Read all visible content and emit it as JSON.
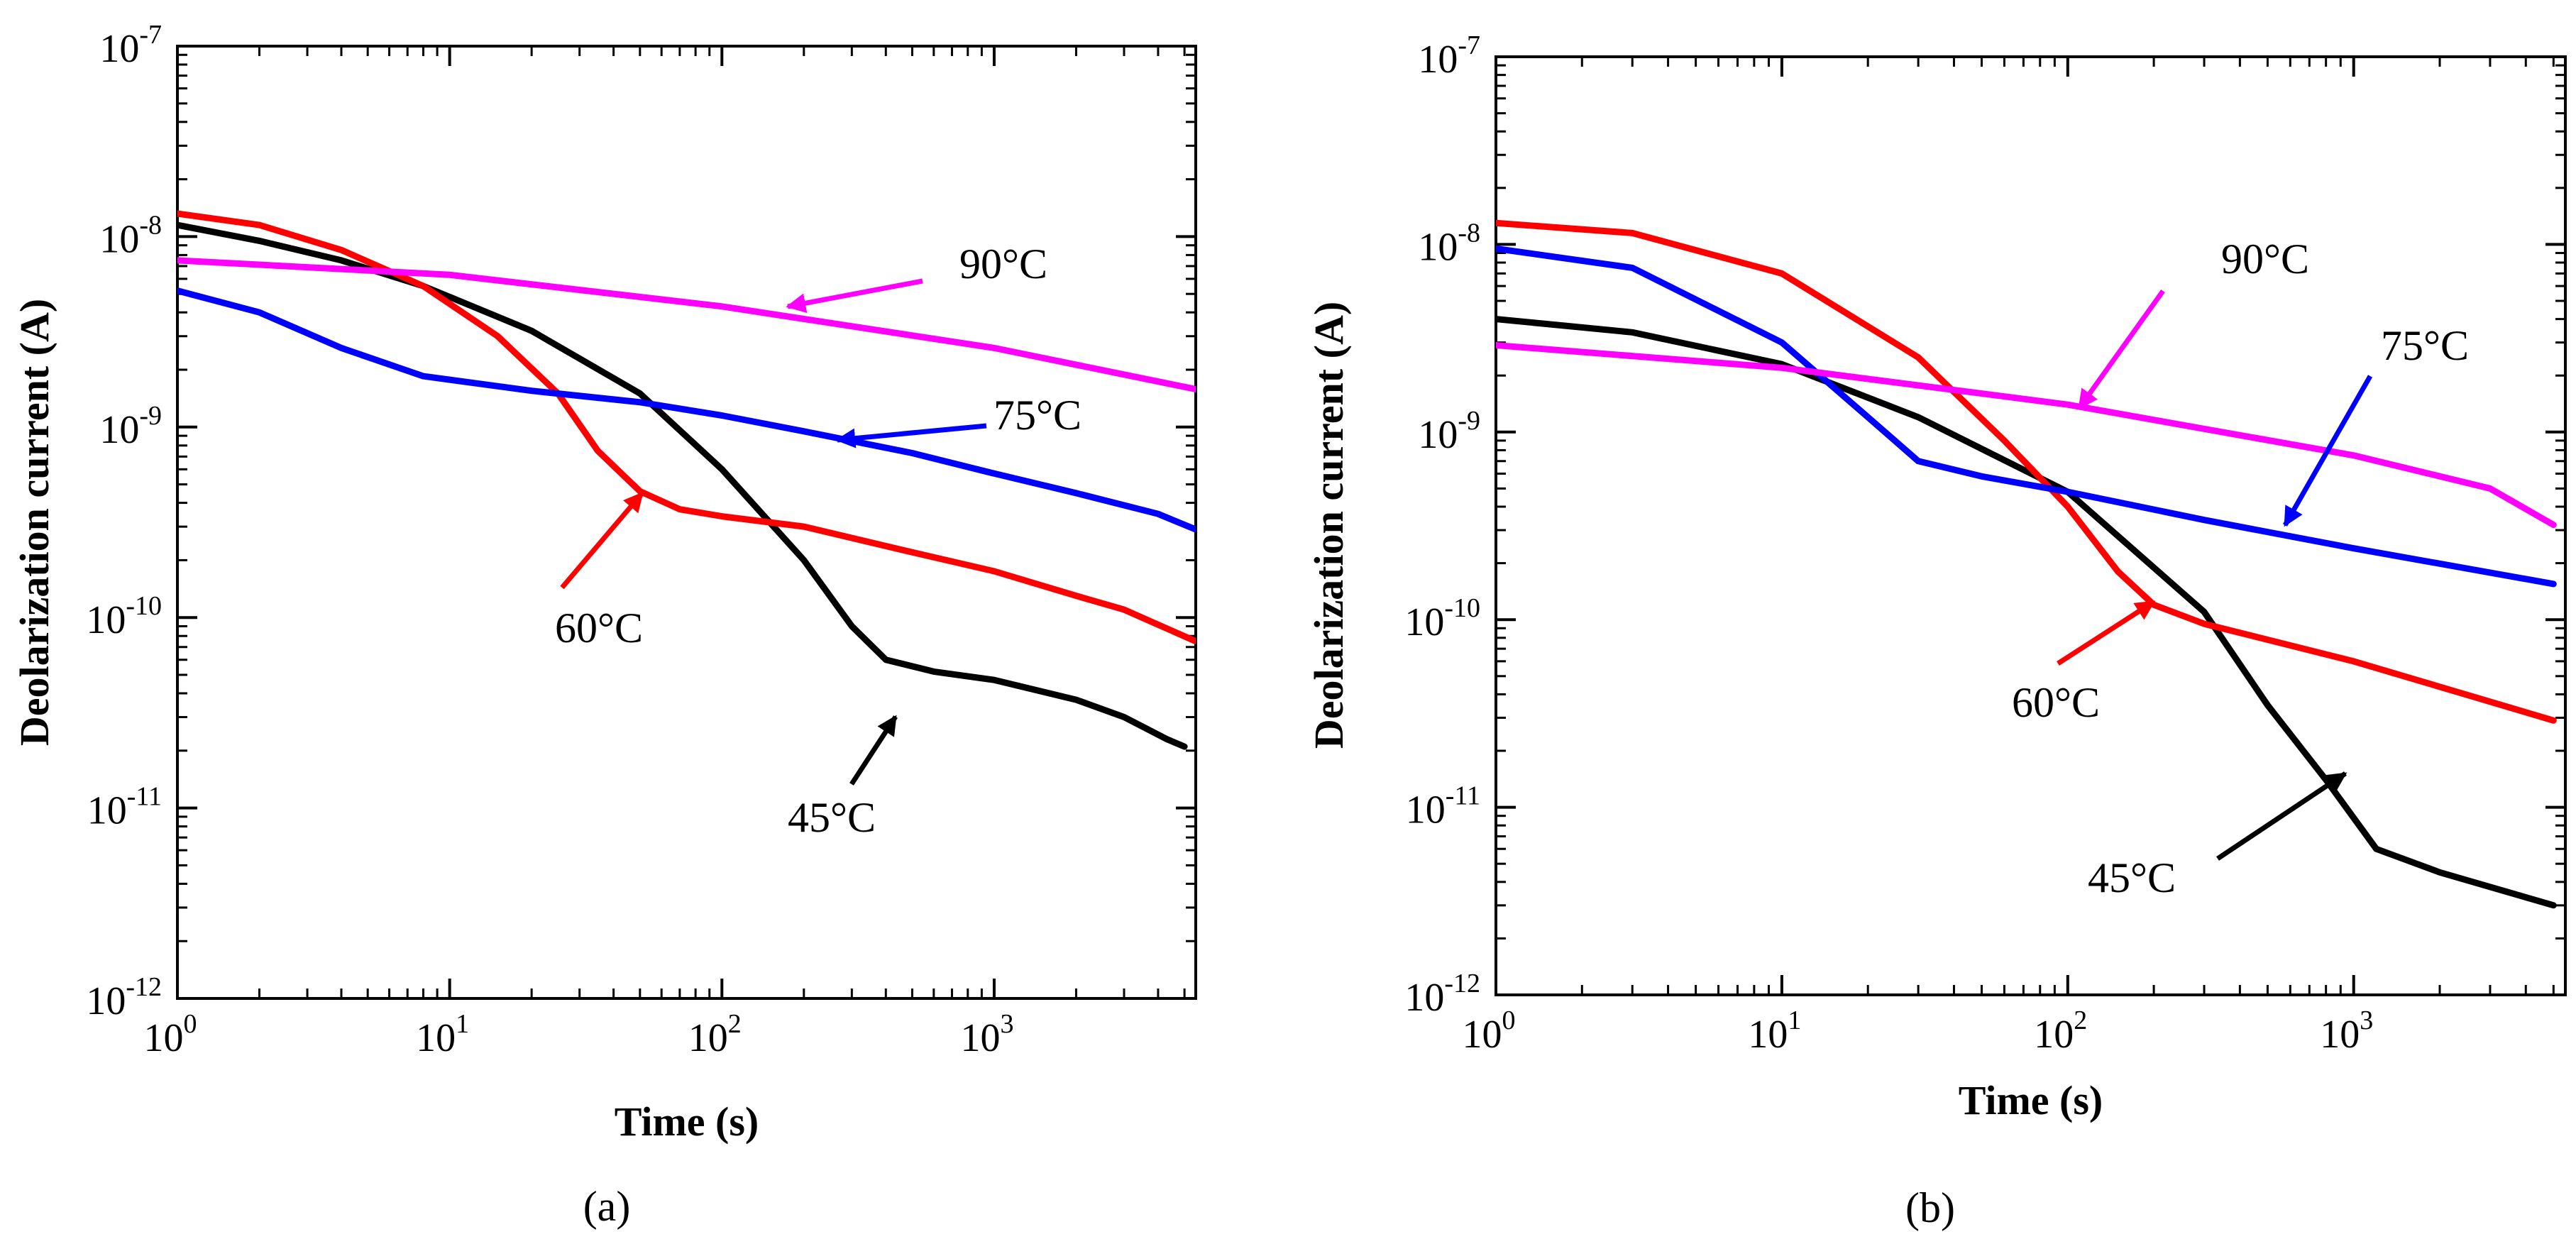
{
  "chart_data": [
    {
      "type": "line",
      "panel_label": "(a)",
      "xlabel": "Time (s)",
      "ylabel": "Deolarization current (A)",
      "x_scale": "log",
      "y_scale": "log",
      "xlim": [
        1,
        5500
      ],
      "ylim": [
        1e-12,
        1e-07
      ],
      "grid": false,
      "legend": "none (curves annotated with arrows)",
      "x_ticks": [
        {
          "label": "10",
          "exp": "0",
          "value": 1
        },
        {
          "label": "10",
          "exp": "1",
          "value": 10
        },
        {
          "label": "10",
          "exp": "2",
          "value": 100
        },
        {
          "label": "10",
          "exp": "3",
          "value": 1000
        }
      ],
      "y_ticks": [
        {
          "label": "10",
          "exp": "-12",
          "value": 1e-12
        },
        {
          "label": "10",
          "exp": "-11",
          "value": 1e-11
        },
        {
          "label": "10",
          "exp": "-10",
          "value": 1e-10
        },
        {
          "label": "10",
          "exp": "-9",
          "value": 1e-09
        },
        {
          "label": "10",
          "exp": "-8",
          "value": 1e-08
        },
        {
          "label": "10",
          "exp": "-7",
          "value": 1e-07
        }
      ],
      "series": [
        {
          "name": "45°C",
          "color": "#000000",
          "x": [
            1,
            2,
            4,
            8,
            20,
            50,
            100,
            200,
            300,
            400,
            600,
            1000,
            2000,
            3000,
            4300,
            5000
          ],
          "y": [
            1.15e-08,
            9.5e-09,
            7.5e-09,
            5.5e-09,
            3.2e-09,
            1.5e-09,
            6e-10,
            2e-10,
            9e-11,
            6e-11,
            5.2e-11,
            4.7e-11,
            3.7e-11,
            3e-11,
            2.3e-11,
            2.1e-11
          ]
        },
        {
          "name": "60°C",
          "color": "#ff0000",
          "x": [
            1,
            2,
            4,
            8,
            15,
            25,
            35,
            50,
            70,
            100,
            200,
            500,
            1000,
            2000,
            3000,
            5500
          ],
          "y": [
            1.32e-08,
            1.15e-08,
            8.5e-09,
            5.5e-09,
            3e-09,
            1.5e-09,
            7.5e-10,
            4.6e-10,
            3.7e-10,
            3.4e-10,
            3e-10,
            2.2e-10,
            1.75e-10,
            1.3e-10,
            1.1e-10,
            7.5e-11
          ]
        },
        {
          "name": "75°C",
          "color": "#0000ff",
          "x": [
            1,
            2,
            4,
            8,
            20,
            50,
            100,
            200,
            500,
            1000,
            2000,
            4000,
            5500
          ],
          "y": [
            5.2e-09,
            4e-09,
            2.6e-09,
            1.85e-09,
            1.55e-09,
            1.35e-09,
            1.15e-09,
            9.5e-10,
            7.3e-10,
            5.7e-10,
            4.5e-10,
            3.5e-10,
            2.9e-10
          ]
        },
        {
          "name": "90°C",
          "color": "#ff00ff",
          "x": [
            1,
            10,
            100,
            1000,
            5500
          ],
          "y": [
            7.5e-09,
            6.3e-09,
            4.3e-09,
            2.6e-09,
            1.58e-09
          ]
        }
      ],
      "annotations": [
        {
          "text": "90°C",
          "series": "90°C"
        },
        {
          "text": "75°C",
          "series": "75°C"
        },
        {
          "text": "60°C",
          "series": "60°C"
        },
        {
          "text": "45°C",
          "series": "45°C"
        }
      ]
    },
    {
      "type": "line",
      "panel_label": "(b)",
      "xlabel": "Time (s)",
      "ylabel": "Deolarization current (A)",
      "x_scale": "log",
      "y_scale": "log",
      "xlim": [
        1,
        5500
      ],
      "ylim": [
        1e-12,
        1e-07
      ],
      "grid": false,
      "legend": "none (curves annotated with arrows)",
      "x_ticks": [
        {
          "label": "10",
          "exp": "0",
          "value": 1
        },
        {
          "label": "10",
          "exp": "1",
          "value": 10
        },
        {
          "label": "10",
          "exp": "2",
          "value": 100
        },
        {
          "label": "10",
          "exp": "3",
          "value": 1000
        }
      ],
      "y_ticks": [
        {
          "label": "10",
          "exp": "-12",
          "value": 1e-12
        },
        {
          "label": "10",
          "exp": "-11",
          "value": 1e-11
        },
        {
          "label": "10",
          "exp": "-10",
          "value": 1e-10
        },
        {
          "label": "10",
          "exp": "-9",
          "value": 1e-09
        },
        {
          "label": "10",
          "exp": "-8",
          "value": 1e-08
        },
        {
          "label": "10",
          "exp": "-7",
          "value": 1e-07
        }
      ],
      "series": [
        {
          "name": "45°C",
          "color": "#000000",
          "x": [
            1,
            3,
            10,
            30,
            100,
            300,
            500,
            800,
            1200,
            2000,
            5000
          ],
          "y": [
            4e-09,
            3.4e-09,
            2.3e-09,
            1.2e-09,
            4.8e-10,
            1.1e-10,
            3.5e-11,
            1.4e-11,
            6e-12,
            4.5e-12,
            3e-12
          ]
        },
        {
          "name": "60°C",
          "color": "#ff0000",
          "x": [
            1,
            3,
            10,
            30,
            60,
            100,
            150,
            200,
            300,
            1000,
            5000
          ],
          "y": [
            1.3e-08,
            1.15e-08,
            7e-09,
            2.5e-09,
            9e-10,
            4e-10,
            1.8e-10,
            1.2e-10,
            9.5e-11,
            6e-11,
            2.9e-11
          ]
        },
        {
          "name": "75°C",
          "color": "#0000ff",
          "x": [
            1,
            3,
            10,
            20,
            30,
            50,
            100,
            300,
            1000,
            5000
          ],
          "y": [
            9.5e-09,
            7.5e-09,
            3e-09,
            1.2e-09,
            7e-10,
            5.8e-10,
            4.8e-10,
            3.4e-10,
            2.4e-10,
            1.55e-10
          ]
        },
        {
          "name": "90°C",
          "color": "#ff00ff",
          "x": [
            1,
            10,
            100,
            1000,
            3000,
            5000
          ],
          "y": [
            2.9e-09,
            2.2e-09,
            1.4e-09,
            7.5e-10,
            5e-10,
            3.2e-10
          ]
        }
      ],
      "annotations": [
        {
          "text": "90°C",
          "series": "90°C"
        },
        {
          "text": "75°C",
          "series": "75°C"
        },
        {
          "text": "60°C",
          "series": "60°C"
        },
        {
          "text": "45°C",
          "series": "45°C"
        }
      ]
    }
  ]
}
